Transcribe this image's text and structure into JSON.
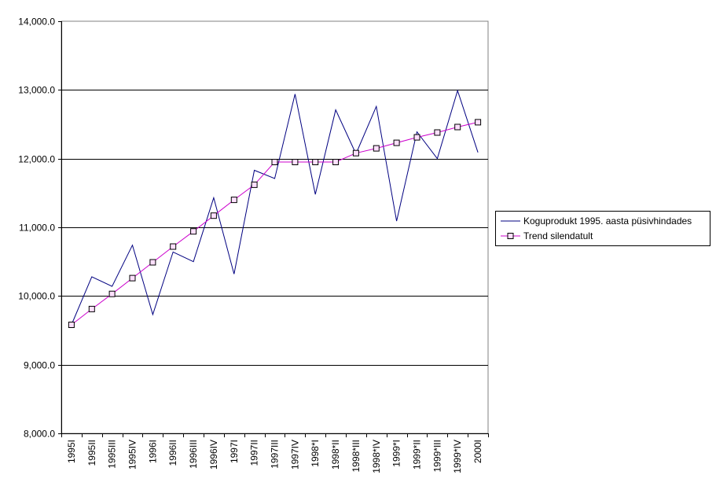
{
  "chart_data": {
    "type": "line",
    "categories": [
      "1995I",
      "1995II",
      "1995III",
      "1995IV",
      "1996I",
      "1996II",
      "1996III",
      "1996IV",
      "1997I",
      "1997II",
      "1997III",
      "1997IV",
      "1998*I",
      "1998*II",
      "1998*III",
      "1998*IV",
      "1999*I",
      "1999*II",
      "1999*III",
      "1999*IV",
      "2000I"
    ],
    "series": [
      {
        "name": "Koguprodukt 1995. aasta püsivhindades",
        "color": "#000080",
        "marker": "none",
        "values": [
          9580,
          10280,
          10140,
          10740,
          9730,
          10640,
          10500,
          11430,
          10320,
          11830,
          11710,
          12940,
          11480,
          12710,
          12070,
          12760,
          11090,
          12390,
          12000,
          12990,
          12090
        ]
      },
      {
        "name": "Trend silendatult",
        "color": "#cc00cc",
        "marker": "square",
        "values": [
          9580,
          9810,
          10030,
          10260,
          10490,
          10720,
          10940,
          11170,
          11400,
          11620,
          11950,
          11950,
          11950,
          11950,
          12080,
          12150,
          12230,
          12310,
          12380,
          12460,
          12530
        ]
      }
    ],
    "yticks": [
      "8,000.0",
      "9,000.0",
      "10,000.0",
      "11,000.0",
      "12,000.0",
      "13,000.0",
      "14,000.0"
    ],
    "ylim": [
      8000,
      14000
    ],
    "grid": true,
    "legend_position": "right"
  }
}
